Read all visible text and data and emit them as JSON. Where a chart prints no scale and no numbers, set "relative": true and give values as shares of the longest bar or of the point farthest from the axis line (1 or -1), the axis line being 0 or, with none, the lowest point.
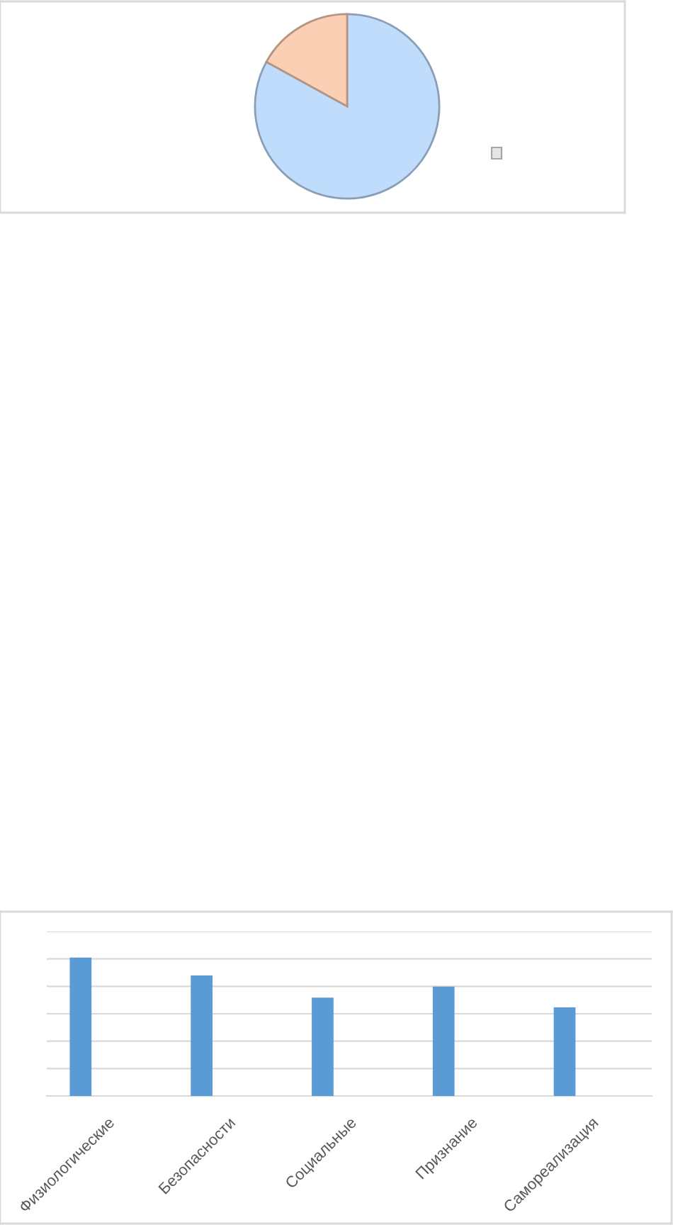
{
  "chart_data": [
    {
      "type": "pie",
      "categories": [
        null,
        null
      ],
      "values": [
        83,
        17
      ],
      "colors": [
        "#bfdcfd",
        "#fbcfb3"
      ]
    },
    {
      "type": "bar",
      "categories": [
        "Физиологические",
        "Безопасности",
        "Социальные",
        "Признание",
        "Самореализация"
      ],
      "values": [
        1,
        0.87,
        0.71,
        0.79,
        0.64
      ],
      "color": "#5b9bd5",
      "relative": true,
      "grid": "y"
    }
  ]
}
